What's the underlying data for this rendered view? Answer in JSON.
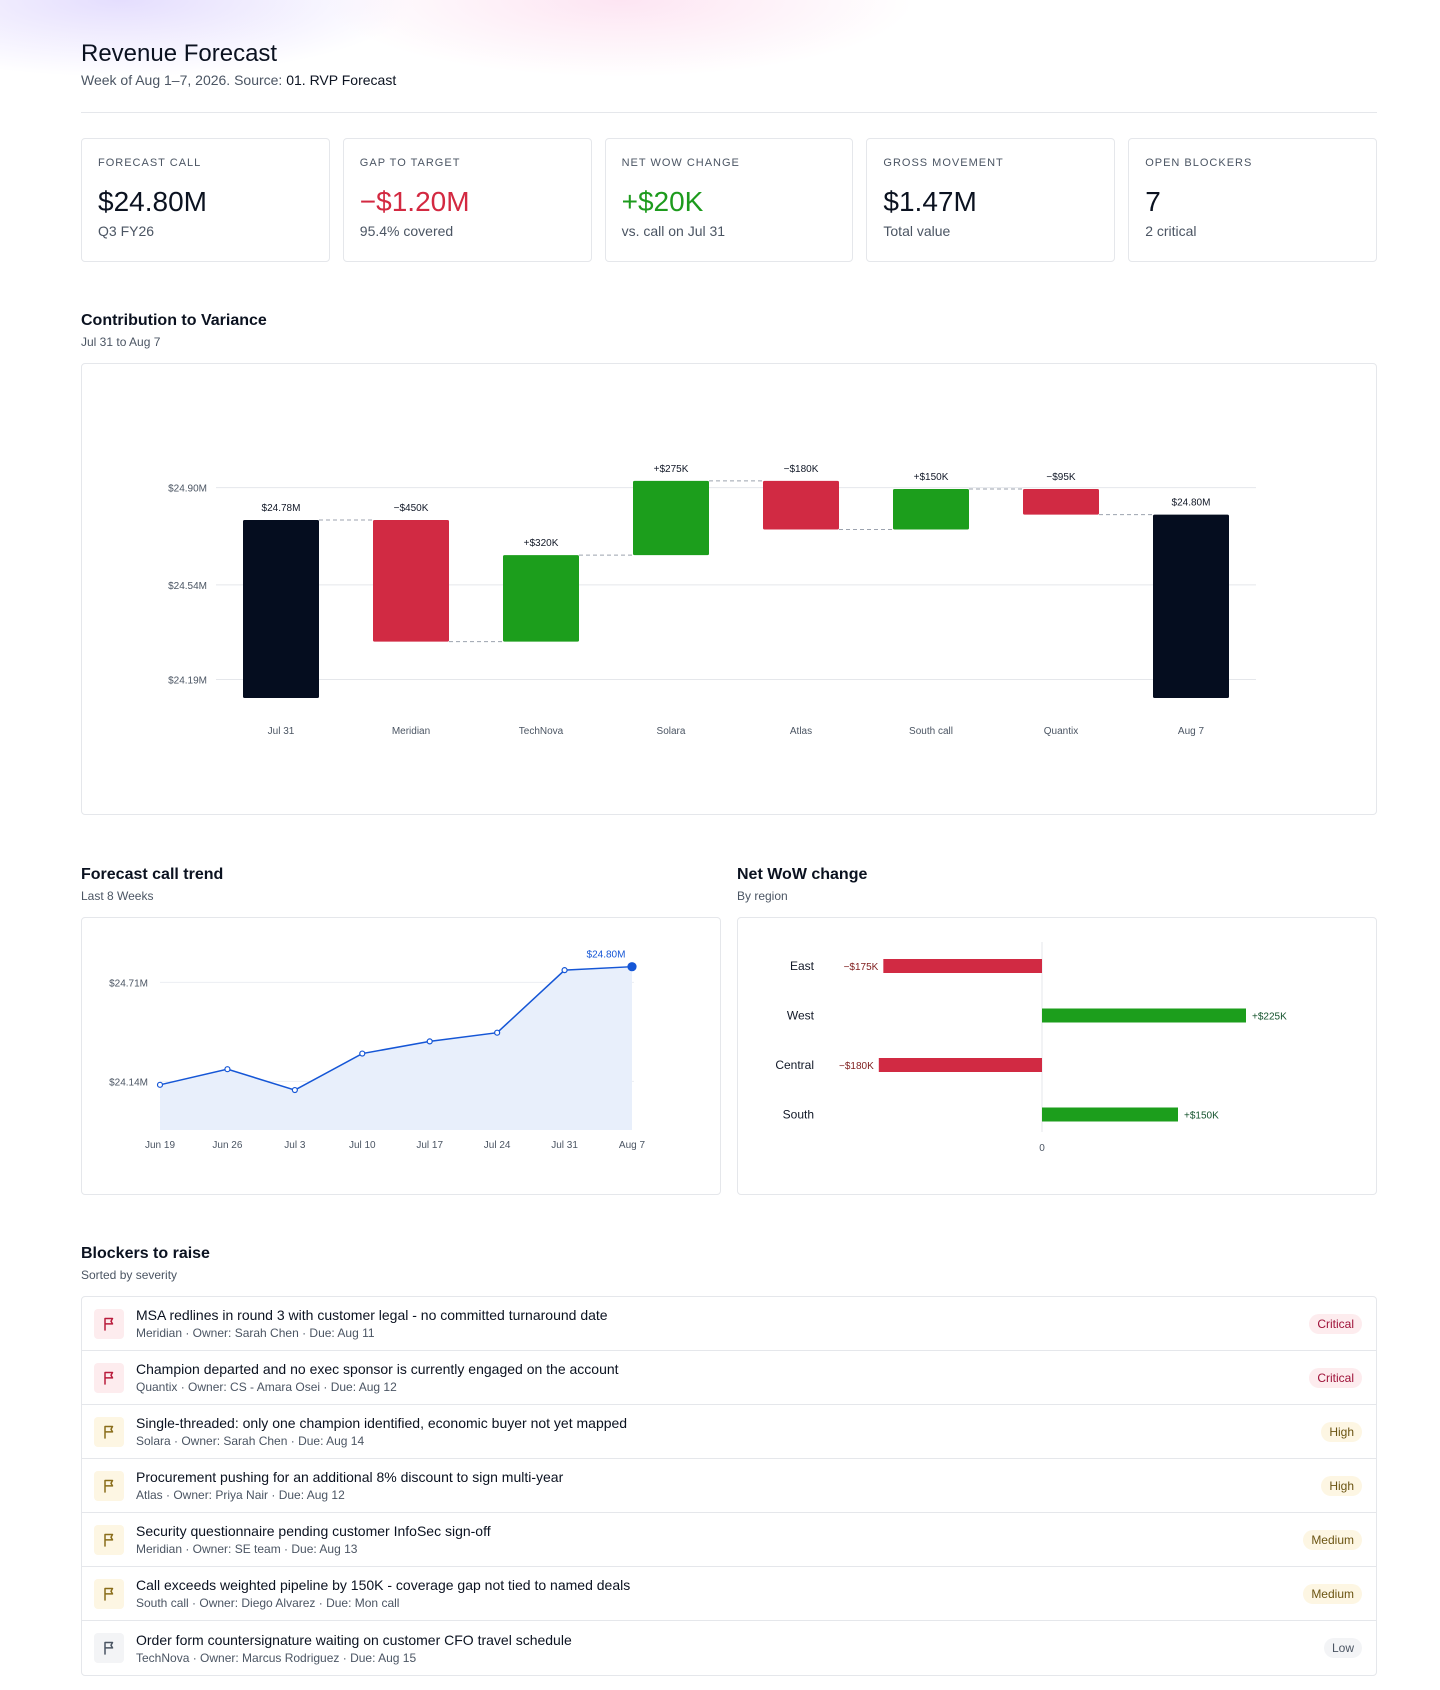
{
  "header": {
    "title": "Revenue Forecast",
    "subtitle_prefix": "Week of Aug 1–7, 2026. Source:",
    "source": "01. RVP Forecast"
  },
  "kpis": [
    {
      "label": "FORECAST CALL",
      "value": "$24.80M",
      "note": "Q3 FY26",
      "tone": "neutral"
    },
    {
      "label": "GAP TO TARGET",
      "value": "−$1.20M",
      "note": "95.4% covered",
      "tone": "neg"
    },
    {
      "label": "NET WOW CHANGE",
      "value": "+$20K",
      "note": "vs. call on Jul 31",
      "tone": "pos"
    },
    {
      "label": "GROSS MOVEMENT",
      "value": "$1.47M",
      "note": "Total value",
      "tone": "neutral"
    },
    {
      "label": "OPEN BLOCKERS",
      "value": "7",
      "note": "2 critical",
      "tone": "neutral"
    }
  ],
  "variance": {
    "title": "Contribution to Variance",
    "subtitle": "Jul 31 to Aug 7"
  },
  "trend": {
    "title": "Forecast call trend",
    "subtitle": "Last 8 Weeks"
  },
  "wow": {
    "title": "Net WoW change",
    "subtitle": "By region"
  },
  "blockers_section": {
    "title": "Blockers to raise",
    "subtitle": "Sorted by severity"
  },
  "chart_data": [
    {
      "type": "bar",
      "subtype": "waterfall",
      "categories": [
        "Jul 31",
        "Meridian",
        "TechNova",
        "Solara",
        "Atlas",
        "South call",
        "Quantix",
        "Aug 7"
      ],
      "values": [
        24780,
        -450,
        320,
        275,
        -180,
        150,
        -95,
        24800
      ],
      "units": "$K",
      "totals": [
        "Jul 31",
        "Aug 7"
      ],
      "data_labels": [
        "$24.78M",
        "−$450K",
        "+$320K",
        "+$275K",
        "−$180K",
        "+$150K",
        "−$95K",
        "$24.80M"
      ],
      "y_ticks": [
        {
          "value": 24190,
          "label": "$24.19M"
        },
        {
          "value": 24540,
          "label": "$24.54M"
        },
        {
          "value": 24900,
          "label": "$24.90M"
        }
      ],
      "ylim": [
        24040,
        25080
      ],
      "grid": true,
      "colors": {
        "total": "#050d1f",
        "increase": "#1c9e1c",
        "decrease": "#d12a43",
        "connector": "#9ca3af"
      }
    },
    {
      "type": "line",
      "categories": [
        "Jun 19",
        "Jun 26",
        "Jul 3",
        "Jul 10",
        "Jul 17",
        "Jul 24",
        "Jul 31",
        "Aug 7"
      ],
      "values": [
        24120,
        24210,
        24090,
        24300,
        24370,
        24420,
        24780,
        24800
      ],
      "units": "$K",
      "end_label": "$24.80M",
      "y_ticks": [
        {
          "value": 24140,
          "label": "$24.14M"
        },
        {
          "value": 24710,
          "label": "$24.71M"
        }
      ],
      "ylim": [
        23860,
        24850
      ],
      "grid": true,
      "colors": {
        "line": "#1556d6",
        "area": "#e8effb"
      }
    },
    {
      "type": "bar",
      "orientation": "horizontal",
      "categories": [
        "East",
        "West",
        "Central",
        "South"
      ],
      "values": [
        -175,
        225,
        -180,
        150
      ],
      "units": "$K",
      "data_labels": [
        "−$175K",
        "+$225K",
        "−$180K",
        "+$150K"
      ],
      "zero_label": "0",
      "xlim": [
        -180,
        225
      ],
      "colors": {
        "pos": "#1c9e1c",
        "neg": "#d12a43",
        "pos_label": "#14532d",
        "neg_label": "#7f1d1d"
      }
    }
  ],
  "blockers": [
    {
      "title": "MSA redlines in round 3 with customer legal - no committed turnaround date",
      "meta": "Meridian · Owner: Sarah Chen · Due: Aug 11",
      "severity": "Critical",
      "level": "critical"
    },
    {
      "title": "Champion departed and no exec sponsor is currently engaged on the account",
      "meta": "Quantix · Owner: CS - Amara Osei · Due: Aug 12",
      "severity": "Critical",
      "level": "critical"
    },
    {
      "title": "Single-threaded: only one champion identified, economic buyer not yet mapped",
      "meta": "Solara · Owner: Sarah Chen · Due: Aug 14",
      "severity": "High",
      "level": "high"
    },
    {
      "title": "Procurement pushing for an additional 8% discount to sign multi-year",
      "meta": "Atlas · Owner: Priya Nair · Due: Aug 12",
      "severity": "High",
      "level": "high"
    },
    {
      "title": "Security questionnaire pending customer InfoSec sign-off",
      "meta": "Meridian · Owner: SE team · Due: Aug 13",
      "severity": "Medium",
      "level": "medium"
    },
    {
      "title": "Call exceeds weighted pipeline by 150K - coverage gap not tied to named deals",
      "meta": "South call · Owner: Diego Alvarez · Due: Mon call",
      "severity": "Medium",
      "level": "medium"
    },
    {
      "title": "Order form countersignature waiting on customer CFO travel schedule",
      "meta": "TechNova · Owner: Marcus Rodriguez · Due: Aug 15",
      "severity": "Low",
      "level": "low"
    }
  ],
  "severity_styles": {
    "critical": {
      "icon_bg": "#fdecee",
      "icon_color": "#b91c3c",
      "badge_bg": "#fdecee",
      "badge_color": "#9f1239"
    },
    "high": {
      "icon_bg": "#fdf6e3",
      "icon_color": "#8a6d1a",
      "badge_bg": "#fdf6e3",
      "badge_color": "#6b5412"
    },
    "medium": {
      "icon_bg": "#fdf6e3",
      "icon_color": "#8a6d1a",
      "badge_bg": "#fdf6e3",
      "badge_color": "#6b5412"
    },
    "low": {
      "icon_bg": "#f3f4f6",
      "icon_color": "#4b5563",
      "badge_bg": "#f3f4f6",
      "badge_color": "#4b5563"
    }
  }
}
